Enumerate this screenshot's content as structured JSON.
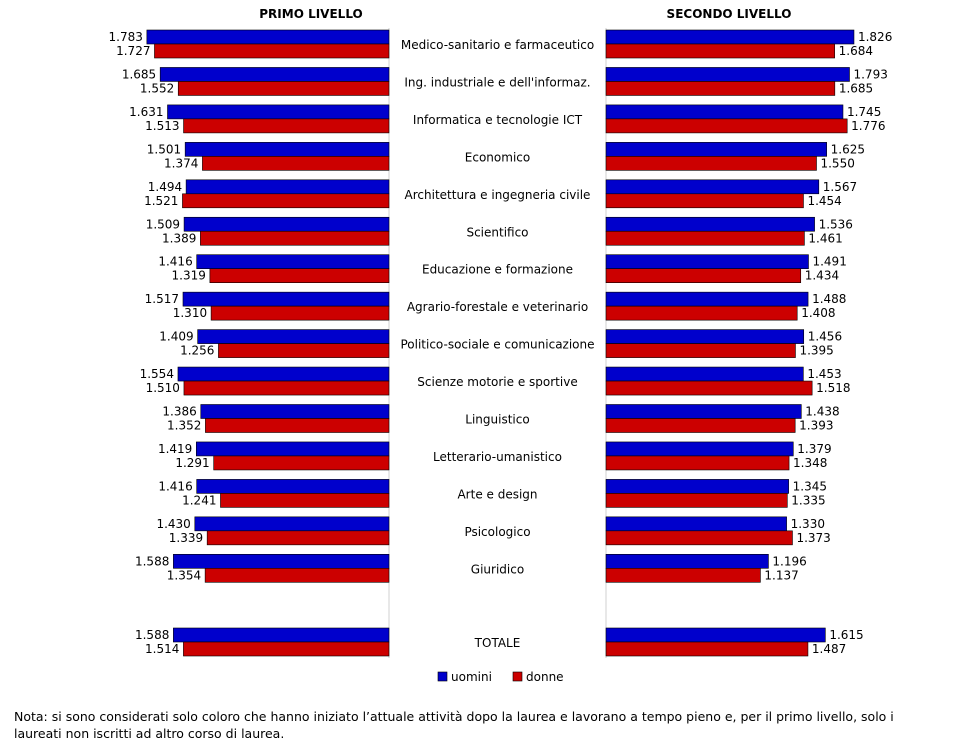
{
  "chart_data": {
    "type": "bar",
    "orientation": "horizontal",
    "panels": [
      {
        "title": "PRIMO LIVELLO"
      },
      {
        "title": "SECONDO LIVELLO"
      }
    ],
    "categories": [
      "Medico-sanitario e farmaceutico",
      "Ing. industriale e dell'informaz.",
      "Informatica e tecnologie ICT",
      "Economico",
      "Architettura e ingegneria civile",
      "Scientifico",
      "Educazione e formazione",
      "Agrario-forestale e veterinario",
      "Politico-sociale e comunicazione",
      "Scienze motorie e sportive",
      "Linguistico",
      "Letterario-umanistico",
      "Arte e design",
      "Psicologico",
      "Giuridico",
      "TOTALE"
    ],
    "series": [
      {
        "name": "uomini",
        "color": "#0000cc",
        "primo": [
          "1.783",
          "1.685",
          "1.631",
          "1.501",
          "1.494",
          "1.509",
          "1.416",
          "1.517",
          "1.409",
          "1.554",
          "1.386",
          "1.419",
          "1.416",
          "1.430",
          "1.588",
          "1.588"
        ],
        "secondo": [
          "1.826",
          "1.793",
          "1.745",
          "1.625",
          "1.567",
          "1.536",
          "1.491",
          "1.488",
          "1.456",
          "1.453",
          "1.438",
          "1.379",
          "1.345",
          "1.330",
          "1.196",
          "1.615"
        ]
      },
      {
        "name": "donne",
        "color": "#cc0000",
        "primo": [
          "1.727",
          "1.552",
          "1.513",
          "1.374",
          "1.521",
          "1.389",
          "1.319",
          "1.310",
          "1.256",
          "1.510",
          "1.352",
          "1.291",
          "1.241",
          "1.339",
          "1.354",
          "1.514"
        ],
        "secondo": [
          "1.684",
          "1.685",
          "1.776",
          "1.550",
          "1.454",
          "1.461",
          "1.434",
          "1.408",
          "1.395",
          "1.518",
          "1.393",
          "1.348",
          "1.335",
          "1.373",
          "1.137",
          "1.487"
        ]
      }
    ],
    "legend_position": "bottom-center"
  },
  "note": "Nota: si sono considerati solo coloro che hanno iniziato l’attuale attività dopo la laurea e lavorano a tempo pieno e, per il primo livello, solo i laureati non iscritti ad altro corso di laurea."
}
